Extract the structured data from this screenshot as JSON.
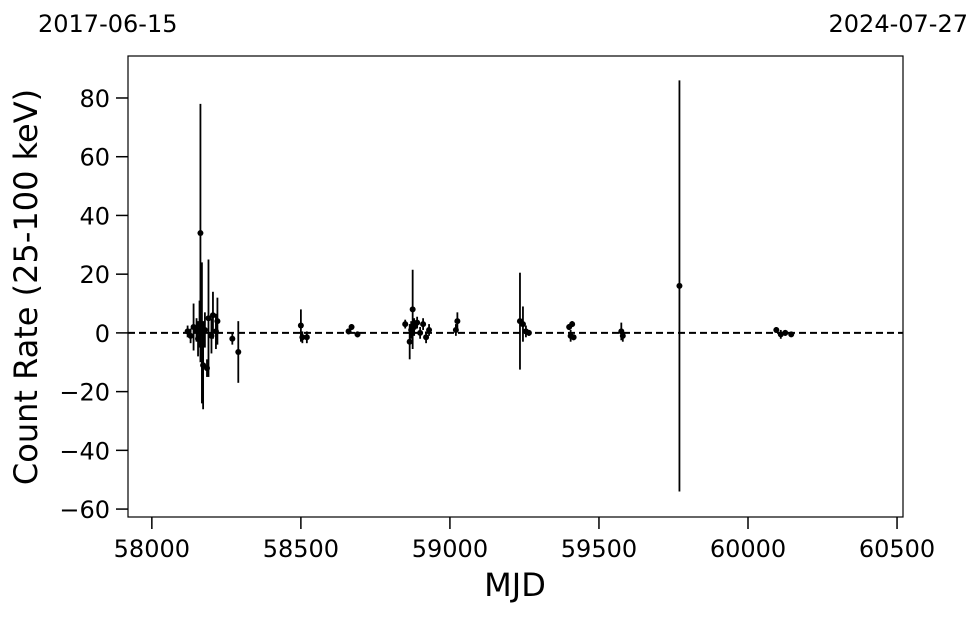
{
  "chart_data": {
    "type": "scatter",
    "annotations": [
      "2017-06-15",
      "2024-07-27"
    ],
    "xlabel": "MJD",
    "ylabel": "Count Rate (25-100 keV)",
    "xlim": [
      57920,
      60520
    ],
    "ylim": [
      -62.7,
      94.3
    ],
    "xticks": [
      58000,
      58500,
      59000,
      59500,
      60000,
      60500
    ],
    "yticks": [
      {
        "value": -60,
        "label": "−60"
      },
      {
        "value": -40,
        "label": "−40"
      },
      {
        "value": -20,
        "label": "−20"
      },
      0,
      20,
      40,
      60,
      80
    ],
    "hline": 0,
    "grid": false,
    "series": [
      {
        "color": "#000000",
        "x": [
          58120,
          58130,
          58140,
          58150,
          58155,
          58160,
          58163,
          58168,
          58172,
          58178,
          58185,
          58190,
          58200,
          58205,
          58215,
          58220,
          58270,
          58290,
          58500,
          58505,
          58520,
          58660,
          58670,
          58690,
          58850,
          58865,
          58870,
          58875,
          58880,
          58890,
          58900,
          58910,
          58920,
          58930,
          59020,
          59025,
          59235,
          59245,
          59255,
          59265,
          59400,
          59405,
          59410,
          59415,
          59575,
          59580,
          59770,
          60095,
          60110,
          60125,
          60145
        ],
        "values": [
          0.5,
          -1,
          2,
          1,
          -2,
          3,
          34,
          0,
          -11,
          1,
          -12,
          5,
          -1,
          6,
          0.5,
          4,
          -2,
          -6.5,
          2.5,
          -1.5,
          -1.5,
          0.5,
          2,
          -0.5,
          3,
          -3,
          1,
          8,
          2,
          3.5,
          0,
          3,
          -1.5,
          1,
          1,
          4,
          4,
          3,
          0.5,
          0,
          2,
          -1,
          3,
          -1.5,
          0.5,
          -1,
          16,
          1,
          -0.5,
          0,
          -0.5
        ],
        "errors": [
          2,
          2.5,
          8,
          4,
          6,
          8,
          44,
          24,
          15,
          6,
          3,
          20,
          6,
          8,
          6,
          8,
          2,
          10.5,
          5.5,
          2,
          2,
          1,
          1,
          1,
          1.5,
          6,
          3,
          13.5,
          3,
          2,
          2,
          2,
          2,
          2,
          2,
          3,
          16.5,
          6,
          2,
          1,
          1,
          2,
          1,
          1,
          3,
          2,
          70,
          1,
          1.5,
          1,
          0.7
        ]
      }
    ]
  }
}
